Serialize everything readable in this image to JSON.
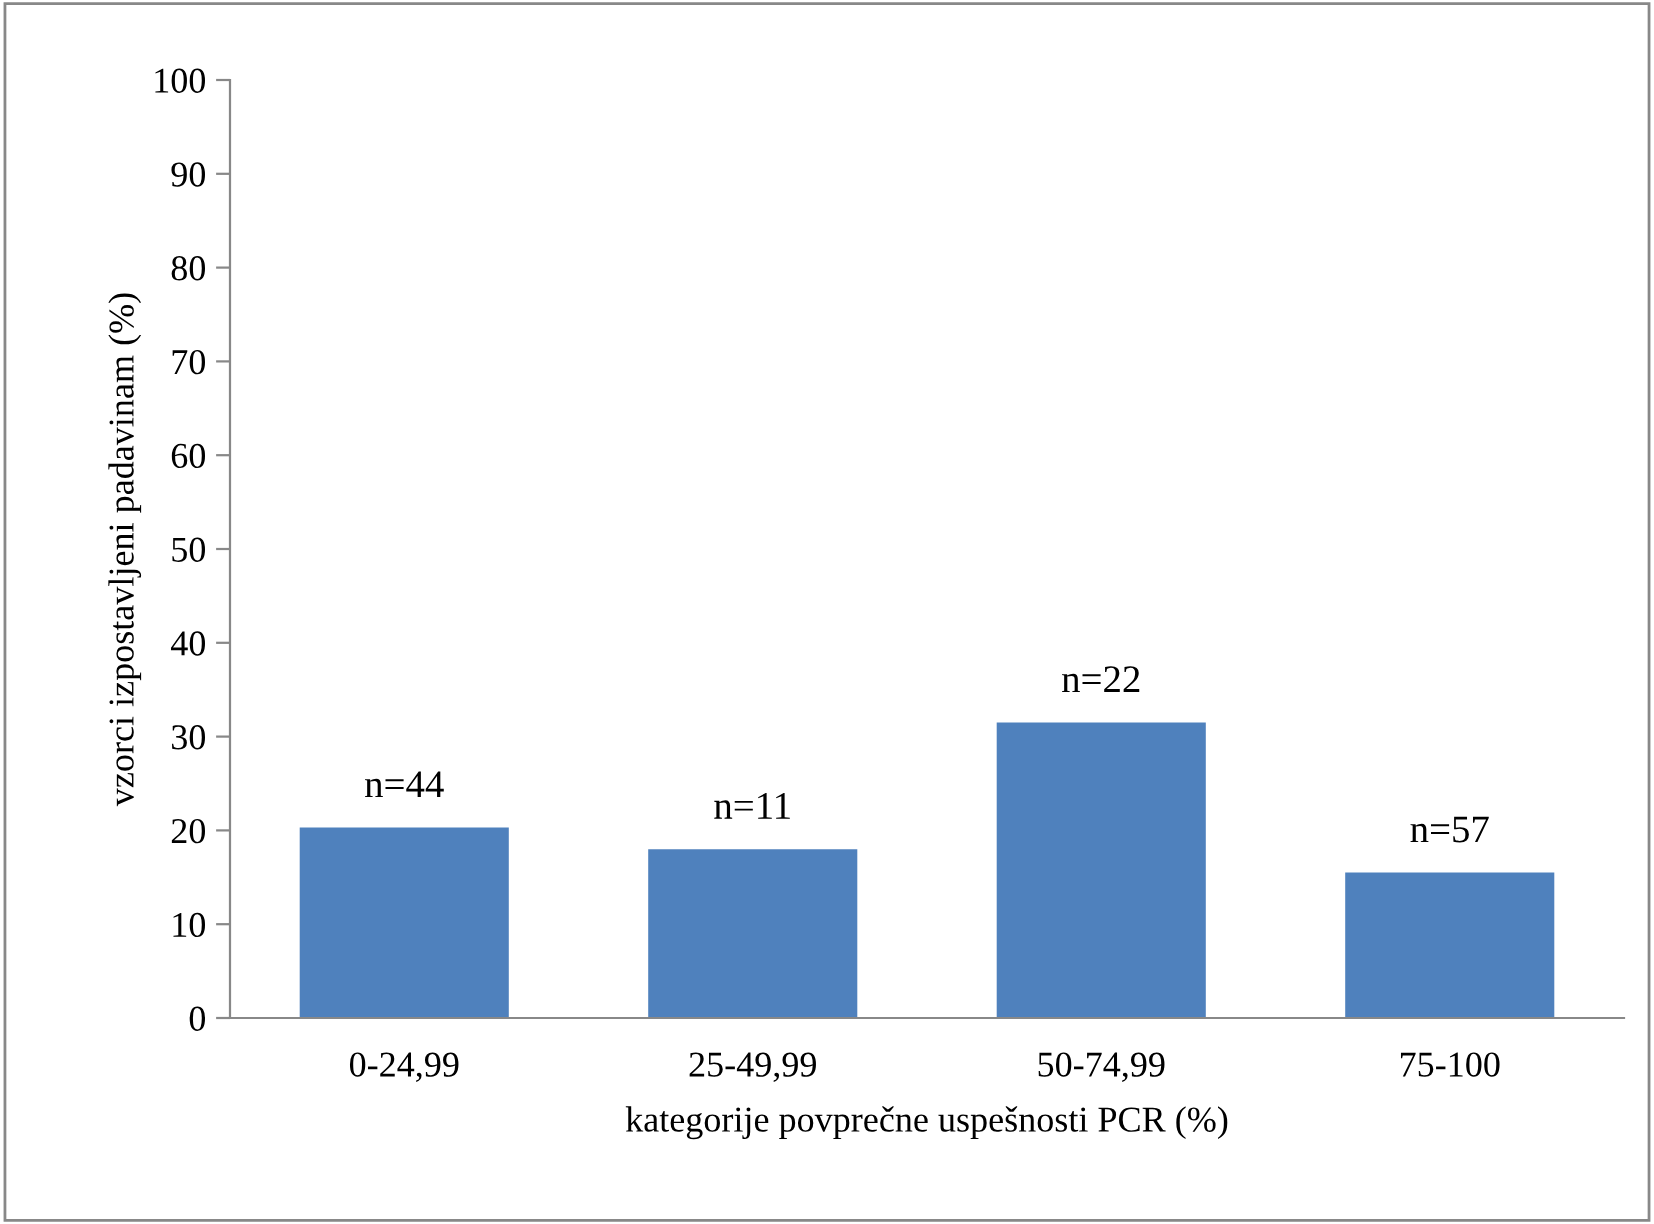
{
  "chart_data": {
    "type": "bar",
    "xlabel": "kategorije povprečne uspešnosti PCR (%)",
    "ylabel": "vzorci izpostavljeni padavinam (%)",
    "categories": [
      "0-24,99",
      "25-49,99",
      "50-74,99",
      "75-100"
    ],
    "values": [
      20.3,
      18.0,
      31.5,
      15.5
    ],
    "color": "#4f81bd",
    "annotations": [
      {
        "text": "n=44",
        "x": "0-24,99",
        "y": 20.3
      },
      {
        "text": "n=11",
        "x": "25-49,99",
        "y": 18.0
      },
      {
        "text": "n=22",
        "x": "50-74,99",
        "y": 31.5
      },
      {
        "text": "n=57",
        "x": "75-100",
        "y": 15.5
      }
    ],
    "ylim": [
      0,
      100
    ],
    "yticks": [
      0,
      10,
      20,
      30,
      40,
      50,
      60,
      70,
      80,
      90,
      100
    ],
    "grid": false,
    "legend": false
  }
}
